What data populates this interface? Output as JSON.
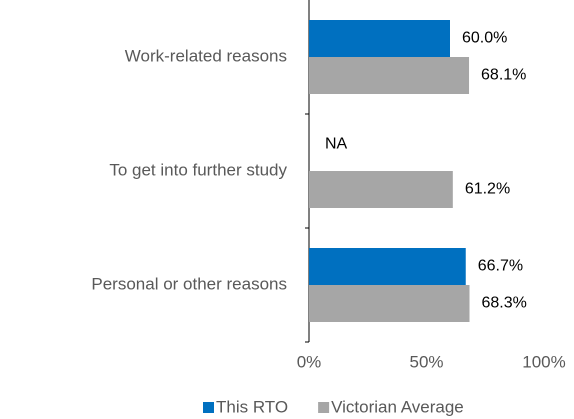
{
  "chart_data": {
    "type": "bar",
    "orientation": "horizontal",
    "categories": [
      "Work-related reasons",
      "To get into further study",
      "Personal or other reasons"
    ],
    "series": [
      {
        "name": "This RTO",
        "color": "#0070c0",
        "values": [
          60.0,
          null,
          66.7
        ],
        "value_labels": [
          "60.0%",
          "NA",
          "66.7%"
        ]
      },
      {
        "name": "Victorian Average",
        "color": "#a6a6a6",
        "values": [
          68.1,
          61.2,
          68.3
        ],
        "value_labels": [
          "68.1%",
          "61.2%",
          "68.3%"
        ]
      }
    ],
    "xlim": [
      0,
      100
    ],
    "xticks": [
      {
        "value": 0,
        "label": "0%"
      },
      {
        "value": 50,
        "label": "50%"
      },
      {
        "value": 100,
        "label": "100%"
      }
    ],
    "legend": "bottom"
  }
}
